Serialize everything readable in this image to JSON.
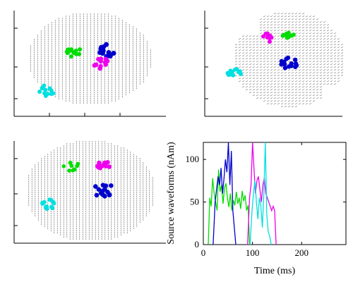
{
  "colors": {
    "green": "#00dd00",
    "blue": "#0000cc",
    "magenta": "#ee00ee",
    "cyan": "#00e0e0",
    "grid": "#6a6a6a",
    "axis": "#000000"
  },
  "panels": {
    "top_left": {
      "view": "lateral-left",
      "clusters": [
        "cyan",
        "green",
        "magenta",
        "blue"
      ]
    },
    "top_right": {
      "view": "oblique",
      "clusters": [
        "magenta",
        "green",
        "blue",
        "cyan"
      ]
    },
    "bottom_left": {
      "view": "top",
      "clusters": [
        "green",
        "magenta",
        "blue",
        "cyan"
      ]
    }
  },
  "chart_data": {
    "type": "line",
    "title": "",
    "xlabel": "Time (ms)",
    "ylabel": "Source waveforms (nAm)",
    "xlim": [
      0,
      290
    ],
    "ylim": [
      0,
      120
    ],
    "xticks": [
      0,
      100,
      200
    ],
    "yticks": [
      0,
      50,
      100
    ],
    "grid": false,
    "series": [
      {
        "color": "green",
        "x": [
          10,
          13,
          16,
          19,
          22,
          25,
          28,
          31,
          34,
          37,
          40,
          43,
          46,
          49,
          52,
          55,
          58,
          61,
          64,
          67,
          70,
          73,
          76,
          79,
          82,
          85,
          88,
          91,
          94
        ],
        "y": [
          0,
          55,
          45,
          78,
          60,
          50,
          40,
          88,
          62,
          70,
          48,
          66,
          72,
          55,
          44,
          60,
          40,
          52,
          46,
          62,
          48,
          55,
          42,
          63,
          51,
          58,
          40,
          46,
          0
        ]
      },
      {
        "color": "blue",
        "x": [
          20,
          24,
          27,
          30,
          33,
          36,
          39,
          42,
          45,
          48,
          51,
          54,
          57,
          60,
          63,
          66
        ],
        "y": [
          0,
          50,
          65,
          80,
          70,
          90,
          60,
          78,
          100,
          85,
          120,
          70,
          110,
          40,
          20,
          0
        ]
      },
      {
        "color": "magenta",
        "x": [
          90,
          94,
          97,
          100,
          103,
          106,
          109,
          112,
          115,
          118,
          121,
          124,
          127,
          130,
          133,
          136,
          139,
          142,
          145,
          148
        ],
        "y": [
          0,
          55,
          70,
          120,
          90,
          60,
          75,
          80,
          65,
          50,
          70,
          78,
          60,
          55,
          50,
          45,
          40,
          45,
          40,
          0
        ]
      },
      {
        "color": "cyan",
        "x": [
          95,
          99,
          102,
          105,
          108,
          111,
          114,
          117,
          120,
          123,
          126,
          129,
          132,
          135,
          138
        ],
        "y": [
          0,
          40,
          60,
          75,
          50,
          30,
          55,
          45,
          20,
          60,
          120,
          35,
          15,
          10,
          0
        ]
      }
    ]
  }
}
